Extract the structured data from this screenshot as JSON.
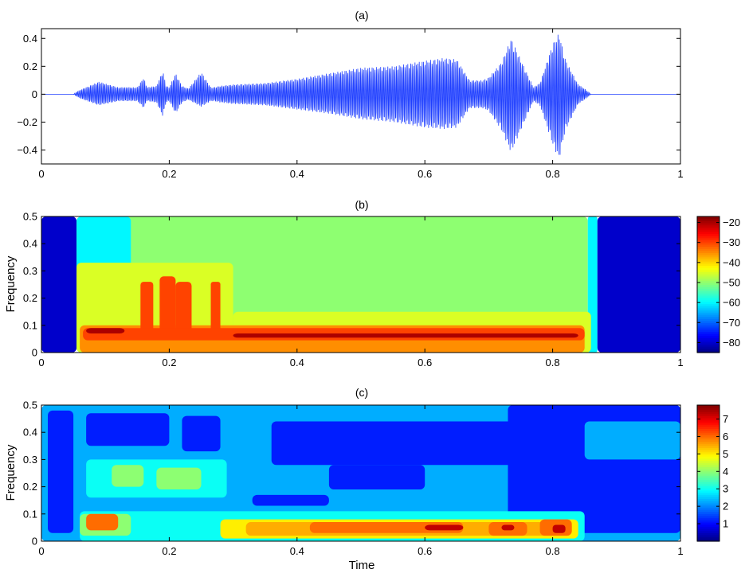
{
  "chart_data": [
    {
      "id": "a",
      "type": "line",
      "title": "(a)",
      "xlabel": "",
      "ylabel": "",
      "xlim": [
        0,
        1
      ],
      "ylim": [
        -0.5,
        0.47
      ],
      "x_ticks": [
        0,
        0.2,
        0.4,
        0.6,
        0.8,
        1
      ],
      "x_tick_labels": [
        "0",
        "0.2",
        "0.4",
        "0.6",
        "0.8",
        "1"
      ],
      "y_ticks": [
        -0.4,
        -0.2,
        0,
        0.2,
        0.4
      ],
      "y_tick_labels": [
        "-0.4",
        "-0.2",
        "0",
        "0.2",
        "0.4"
      ],
      "line_color": "#1f3fff",
      "envelope": {
        "x": [
          0,
          0.05,
          0.06,
          0.09,
          0.12,
          0.15,
          0.16,
          0.165,
          0.18,
          0.19,
          0.195,
          0.2,
          0.21,
          0.22,
          0.225,
          0.23,
          0.25,
          0.265,
          0.27,
          0.28,
          0.3,
          0.35,
          0.4,
          0.45,
          0.5,
          0.55,
          0.6,
          0.63,
          0.65,
          0.67,
          0.69,
          0.7,
          0.72,
          0.735,
          0.75,
          0.77,
          0.78,
          0.8,
          0.81,
          0.82,
          0.84,
          0.85,
          0.86,
          1
        ],
        "upper": [
          0,
          0,
          0.03,
          0.09,
          0.05,
          0.05,
          0.12,
          0.05,
          0.06,
          0.17,
          0.06,
          0.05,
          0.15,
          0.06,
          0.05,
          0.04,
          0.16,
          0.05,
          0.05,
          0.06,
          0.07,
          0.08,
          0.11,
          0.15,
          0.19,
          0.2,
          0.24,
          0.26,
          0.25,
          0.1,
          0.1,
          0.12,
          0.23,
          0.4,
          0.25,
          0.05,
          0.08,
          0.36,
          0.44,
          0.25,
          0.07,
          0.04,
          0,
          0
        ],
        "lower": [
          0,
          0,
          -0.03,
          -0.08,
          -0.05,
          -0.05,
          -0.1,
          -0.05,
          -0.06,
          -0.16,
          -0.06,
          -0.05,
          -0.14,
          -0.06,
          -0.05,
          -0.04,
          -0.09,
          -0.05,
          -0.05,
          -0.06,
          -0.07,
          -0.08,
          -0.11,
          -0.14,
          -0.18,
          -0.2,
          -0.24,
          -0.25,
          -0.24,
          -0.1,
          -0.1,
          -0.12,
          -0.26,
          -0.42,
          -0.26,
          -0.05,
          -0.08,
          -0.36,
          -0.47,
          -0.26,
          -0.07,
          -0.04,
          0,
          0
        ]
      }
    },
    {
      "id": "b",
      "type": "heatmap",
      "title": "(b)",
      "xlabel": "",
      "ylabel": "Frequency",
      "xlim": [
        0,
        1
      ],
      "ylim": [
        0,
        0.5
      ],
      "x_ticks": [
        0,
        0.2,
        0.4,
        0.6,
        0.8,
        1
      ],
      "x_tick_labels": [
        "0",
        "0.2",
        "0.4",
        "0.6",
        "0.8",
        "1"
      ],
      "y_ticks": [
        0,
        0.1,
        0.2,
        0.3,
        0.4,
        0.5
      ],
      "y_tick_labels": [
        "0",
        "0.1",
        "0.2",
        "0.3",
        "0.4",
        "0.5"
      ],
      "colorbar": {
        "range": [
          -85,
          -17
        ],
        "ticks": [
          -80,
          -70,
          -60,
          -50,
          -40,
          -30,
          -20
        ],
        "tick_labels": [
          "-80",
          "-70",
          "-60",
          "-50",
          "-40",
          "-30",
          "-20"
        ]
      },
      "levels": {
        "bg_blue": -80,
        "cyan": -60,
        "green": -50,
        "yellow": -45,
        "orange": -35,
        "red": -30,
        "darkred": -20
      },
      "regions": [
        {
          "level": "bg_blue",
          "x": [
            0,
            0.055
          ],
          "y": [
            0,
            0.5
          ]
        },
        {
          "level": "green",
          "x": [
            0.055,
            0.855
          ],
          "y": [
            0,
            0.5
          ]
        },
        {
          "level": "cyan",
          "x": [
            0.055,
            0.14
          ],
          "y": [
            0.28,
            0.5
          ]
        },
        {
          "level": "cyan",
          "x": [
            0.855,
            0.87
          ],
          "y": [
            0,
            0.5
          ]
        },
        {
          "level": "bg_blue",
          "x": [
            0.87,
            1
          ],
          "y": [
            0,
            0.5
          ]
        },
        {
          "level": "yellow",
          "x": [
            0.055,
            0.3
          ],
          "y": [
            0,
            0.33
          ]
        },
        {
          "level": "yellow",
          "x": [
            0.3,
            0.86
          ],
          "y": [
            0,
            0.15
          ]
        },
        {
          "level": "orange",
          "x": [
            0.06,
            0.85
          ],
          "y": [
            0,
            0.1
          ]
        },
        {
          "level": "red",
          "x": [
            0.155,
            0.175
          ],
          "y": [
            0.05,
            0.26
          ]
        },
        {
          "level": "red",
          "x": [
            0.185,
            0.21
          ],
          "y": [
            0.05,
            0.28
          ]
        },
        {
          "level": "red",
          "x": [
            0.21,
            0.235
          ],
          "y": [
            0.05,
            0.26
          ]
        },
        {
          "level": "red",
          "x": [
            0.265,
            0.28
          ],
          "y": [
            0.05,
            0.26
          ]
        },
        {
          "level": "red",
          "x": [
            0.065,
            0.85
          ],
          "y": [
            0.045,
            0.09
          ]
        },
        {
          "level": "darkred",
          "x": [
            0.07,
            0.13
          ],
          "y": [
            0.07,
            0.09
          ]
        },
        {
          "level": "darkred",
          "x": [
            0.3,
            0.84
          ],
          "y": [
            0.055,
            0.07
          ]
        }
      ]
    },
    {
      "id": "c",
      "type": "heatmap",
      "title": "(c)",
      "xlabel": "Time",
      "ylabel": "Frequency",
      "xlim": [
        0,
        1
      ],
      "ylim": [
        0,
        0.5
      ],
      "x_ticks": [
        0,
        0.2,
        0.4,
        0.6,
        0.8,
        1
      ],
      "x_tick_labels": [
        "0",
        "0.2",
        "0.4",
        "0.6",
        "0.8",
        "1"
      ],
      "y_ticks": [
        0,
        0.1,
        0.2,
        0.3,
        0.4,
        0.5
      ],
      "y_tick_labels": [
        "0",
        "0.1",
        "0.2",
        "0.3",
        "0.4",
        "0.5"
      ],
      "colorbar": {
        "range": [
          0,
          7.8
        ],
        "ticks": [
          1,
          2,
          3,
          4,
          5,
          6,
          7
        ],
        "tick_labels": [
          "1",
          "2",
          "3",
          "4",
          "5",
          "6",
          "7"
        ]
      },
      "levels": {
        "blue": 1.2,
        "lightblue": 2.3,
        "cyan": 3,
        "green": 4,
        "yellow": 5,
        "orange": 5.5,
        "red": 6,
        "darkred": 7.3
      },
      "regions": [
        {
          "level": "lightblue",
          "x": [
            0,
            1
          ],
          "y": [
            0,
            0.5
          ]
        },
        {
          "level": "blue",
          "x": [
            0.01,
            0.05
          ],
          "y": [
            0.03,
            0.48
          ]
        },
        {
          "level": "blue",
          "x": [
            0.07,
            0.2
          ],
          "y": [
            0.35,
            0.47
          ]
        },
        {
          "level": "blue",
          "x": [
            0.22,
            0.28
          ],
          "y": [
            0.33,
            0.46
          ]
        },
        {
          "level": "blue",
          "x": [
            0.36,
            0.74
          ],
          "y": [
            0.28,
            0.44
          ]
        },
        {
          "level": "blue",
          "x": [
            0.45,
            0.6
          ],
          "y": [
            0.19,
            0.28
          ]
        },
        {
          "level": "blue",
          "x": [
            0.33,
            0.45
          ],
          "y": [
            0.13,
            0.17
          ]
        },
        {
          "level": "blue",
          "x": [
            0.73,
            1
          ],
          "y": [
            0.03,
            0.5
          ]
        },
        {
          "level": "lightblue",
          "x": [
            0.85,
            1
          ],
          "y": [
            0.3,
            0.44
          ]
        },
        {
          "level": "cyan",
          "x": [
            0.07,
            0.29
          ],
          "y": [
            0.16,
            0.3
          ]
        },
        {
          "level": "green",
          "x": [
            0.11,
            0.16
          ],
          "y": [
            0.2,
            0.28
          ]
        },
        {
          "level": "green",
          "x": [
            0.18,
            0.25
          ],
          "y": [
            0.19,
            0.27
          ]
        },
        {
          "level": "cyan",
          "x": [
            0.06,
            0.85
          ],
          "y": [
            0,
            0.11
          ]
        },
        {
          "level": "green",
          "x": [
            0.06,
            0.14
          ],
          "y": [
            0.02,
            0.1
          ]
        },
        {
          "level": "yellow",
          "x": [
            0.28,
            0.84
          ],
          "y": [
            0.01,
            0.08
          ]
        },
        {
          "level": "orange",
          "x": [
            0.32,
            0.83
          ],
          "y": [
            0.02,
            0.07
          ]
        },
        {
          "level": "red",
          "x": [
            0.07,
            0.12
          ],
          "y": [
            0.04,
            0.1
          ]
        },
        {
          "level": "red",
          "x": [
            0.42,
            0.66
          ],
          "y": [
            0.03,
            0.07
          ]
        },
        {
          "level": "red",
          "x": [
            0.7,
            0.76
          ],
          "y": [
            0.02,
            0.07
          ]
        },
        {
          "level": "red",
          "x": [
            0.78,
            0.83
          ],
          "y": [
            0.02,
            0.08
          ]
        },
        {
          "level": "darkred",
          "x": [
            0.6,
            0.66
          ],
          "y": [
            0.04,
            0.06
          ]
        },
        {
          "level": "darkred",
          "x": [
            0.72,
            0.74
          ],
          "y": [
            0.04,
            0.06
          ]
        },
        {
          "level": "darkred",
          "x": [
            0.8,
            0.82
          ],
          "y": [
            0.03,
            0.06
          ]
        }
      ]
    }
  ]
}
